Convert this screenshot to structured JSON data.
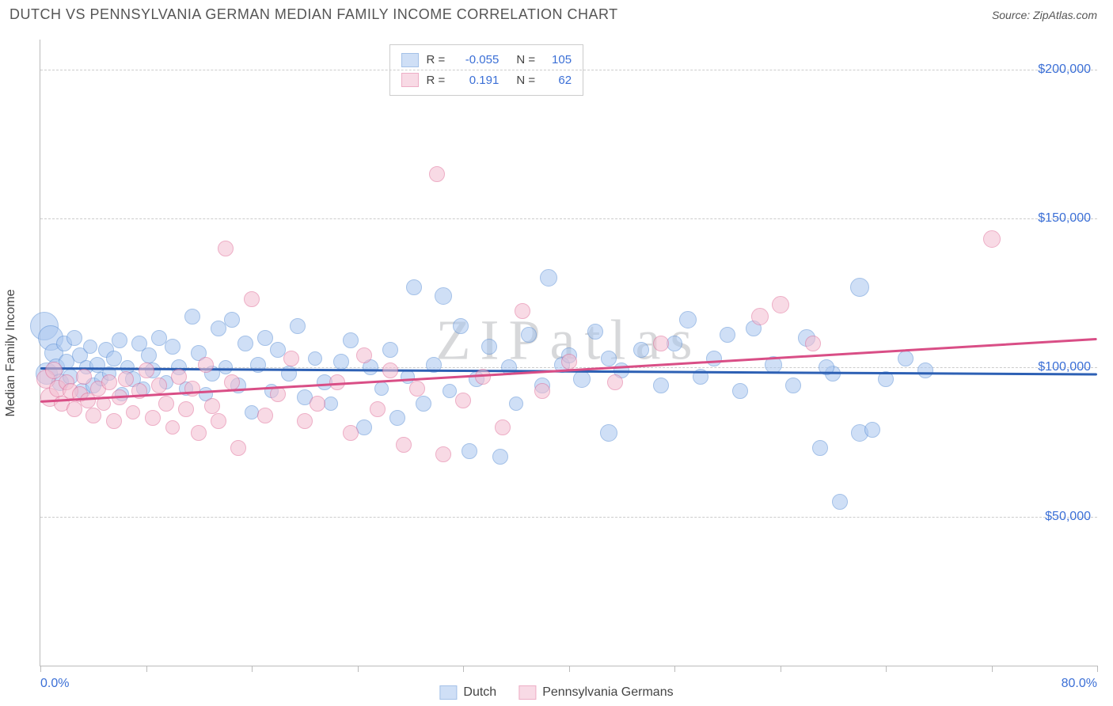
{
  "header": {
    "title": "DUTCH VS PENNSYLVANIA GERMAN MEDIAN FAMILY INCOME CORRELATION CHART",
    "source": "Source: ZipAtlas.com"
  },
  "watermark": "ZIPatlas",
  "chart": {
    "type": "scatter",
    "background_color": "#ffffff",
    "grid_color": "#cccccc",
    "grid_dash": "4,4",
    "axis_color": "#bbbbbb",
    "label_color": "#3b6fd6",
    "text_color": "#444444",
    "yaxis": {
      "title": "Median Family Income",
      "min": 0,
      "max": 210000
    },
    "y_gridlines": [
      {
        "v": 50000,
        "label": "$50,000"
      },
      {
        "v": 100000,
        "label": "$100,000"
      },
      {
        "v": 150000,
        "label": "$150,000"
      },
      {
        "v": 200000,
        "label": "$200,000"
      }
    ],
    "xaxis": {
      "min": 0,
      "max": 80
    },
    "x_ticks": [
      0,
      8,
      16,
      24,
      32,
      40,
      48,
      56,
      64,
      72,
      80
    ],
    "x_labels": [
      {
        "v": 0,
        "label": "0.0%"
      },
      {
        "v": 80,
        "label": "80.0%"
      }
    ],
    "series": [
      {
        "id": "dutch",
        "name": "Dutch",
        "fill": "#a9c6ef",
        "stroke": "#5a8fd6",
        "fill_opacity": 0.55,
        "trend": {
          "y_at_xmin": 100000,
          "y_at_xmax": 98000,
          "color": "#2d60b4",
          "width": 3
        },
        "stats": {
          "R": "-0.055",
          "N": "105"
        },
        "points": [
          {
            "x": 0.3,
            "y": 114000,
            "r": 18
          },
          {
            "x": 0.5,
            "y": 98000,
            "r": 14
          },
          {
            "x": 0.8,
            "y": 110000,
            "r": 16
          },
          {
            "x": 1.0,
            "y": 105000,
            "r": 12
          },
          {
            "x": 1.2,
            "y": 100000,
            "r": 11
          },
          {
            "x": 1.5,
            "y": 95000,
            "r": 11
          },
          {
            "x": 1.8,
            "y": 108000,
            "r": 10
          },
          {
            "x": 2.0,
            "y": 102000,
            "r": 10
          },
          {
            "x": 2.3,
            "y": 97000,
            "r": 10
          },
          {
            "x": 2.6,
            "y": 110000,
            "r": 10
          },
          {
            "x": 3.0,
            "y": 104000,
            "r": 10
          },
          {
            "x": 3.2,
            "y": 92000,
            "r": 10
          },
          {
            "x": 3.5,
            "y": 100000,
            "r": 9
          },
          {
            "x": 3.8,
            "y": 107000,
            "r": 9
          },
          {
            "x": 4.0,
            "y": 94000,
            "r": 10
          },
          {
            "x": 4.3,
            "y": 101000,
            "r": 10
          },
          {
            "x": 4.6,
            "y": 96000,
            "r": 9
          },
          {
            "x": 5.0,
            "y": 106000,
            "r": 10
          },
          {
            "x": 5.2,
            "y": 98000,
            "r": 9
          },
          {
            "x": 5.6,
            "y": 103000,
            "r": 10
          },
          {
            "x": 6.0,
            "y": 109000,
            "r": 10
          },
          {
            "x": 6.2,
            "y": 91000,
            "r": 9
          },
          {
            "x": 6.6,
            "y": 100000,
            "r": 9
          },
          {
            "x": 7.0,
            "y": 96000,
            "r": 10
          },
          {
            "x": 7.5,
            "y": 108000,
            "r": 10
          },
          {
            "x": 7.8,
            "y": 93000,
            "r": 9
          },
          {
            "x": 8.2,
            "y": 104000,
            "r": 10
          },
          {
            "x": 8.5,
            "y": 99000,
            "r": 10
          },
          {
            "x": 9.0,
            "y": 110000,
            "r": 10
          },
          {
            "x": 9.5,
            "y": 95000,
            "r": 9
          },
          {
            "x": 10.0,
            "y": 107000,
            "r": 10
          },
          {
            "x": 10.5,
            "y": 100000,
            "r": 10
          },
          {
            "x": 11.0,
            "y": 93000,
            "r": 9
          },
          {
            "x": 11.5,
            "y": 117000,
            "r": 10
          },
          {
            "x": 12.0,
            "y": 105000,
            "r": 10
          },
          {
            "x": 12.5,
            "y": 91000,
            "r": 9
          },
          {
            "x": 13.0,
            "y": 98000,
            "r": 10
          },
          {
            "x": 13.5,
            "y": 113000,
            "r": 10
          },
          {
            "x": 14.0,
            "y": 100000,
            "r": 9
          },
          {
            "x": 14.5,
            "y": 116000,
            "r": 10
          },
          {
            "x": 15.0,
            "y": 94000,
            "r": 10
          },
          {
            "x": 15.5,
            "y": 108000,
            "r": 10
          },
          {
            "x": 16.0,
            "y": 85000,
            "r": 9
          },
          {
            "x": 16.5,
            "y": 101000,
            "r": 10
          },
          {
            "x": 17.0,
            "y": 110000,
            "r": 10
          },
          {
            "x": 17.5,
            "y": 92000,
            "r": 9
          },
          {
            "x": 18.0,
            "y": 106000,
            "r": 10
          },
          {
            "x": 18.8,
            "y": 98000,
            "r": 10
          },
          {
            "x": 19.5,
            "y": 114000,
            "r": 10
          },
          {
            "x": 20.0,
            "y": 90000,
            "r": 10
          },
          {
            "x": 20.8,
            "y": 103000,
            "r": 9
          },
          {
            "x": 21.5,
            "y": 95000,
            "r": 10
          },
          {
            "x": 22.0,
            "y": 88000,
            "r": 9
          },
          {
            "x": 22.8,
            "y": 102000,
            "r": 10
          },
          {
            "x": 23.5,
            "y": 109000,
            "r": 10
          },
          {
            "x": 24.5,
            "y": 80000,
            "r": 10
          },
          {
            "x": 25.0,
            "y": 100000,
            "r": 10
          },
          {
            "x": 25.8,
            "y": 93000,
            "r": 9
          },
          {
            "x": 26.5,
            "y": 106000,
            "r": 10
          },
          {
            "x": 27.0,
            "y": 83000,
            "r": 10
          },
          {
            "x": 27.8,
            "y": 97000,
            "r": 9
          },
          {
            "x": 28.3,
            "y": 127000,
            "r": 10
          },
          {
            "x": 29.0,
            "y": 88000,
            "r": 10
          },
          {
            "x": 29.8,
            "y": 101000,
            "r": 10
          },
          {
            "x": 30.5,
            "y": 124000,
            "r": 11
          },
          {
            "x": 31.0,
            "y": 92000,
            "r": 9
          },
          {
            "x": 31.8,
            "y": 114000,
            "r": 10
          },
          {
            "x": 32.5,
            "y": 72000,
            "r": 10
          },
          {
            "x": 33.0,
            "y": 96000,
            "r": 10
          },
          {
            "x": 34.0,
            "y": 107000,
            "r": 10
          },
          {
            "x": 34.8,
            "y": 70000,
            "r": 10
          },
          {
            "x": 35.5,
            "y": 100000,
            "r": 10
          },
          {
            "x": 36.0,
            "y": 88000,
            "r": 9
          },
          {
            "x": 37.0,
            "y": 111000,
            "r": 10
          },
          {
            "x": 38.0,
            "y": 94000,
            "r": 10
          },
          {
            "x": 38.5,
            "y": 130000,
            "r": 11
          },
          {
            "x": 39.5,
            "y": 101000,
            "r": 10
          },
          {
            "x": 40.0,
            "y": 104000,
            "r": 10
          },
          {
            "x": 41.0,
            "y": 96000,
            "r": 11
          },
          {
            "x": 42.0,
            "y": 112000,
            "r": 10
          },
          {
            "x": 43.0,
            "y": 78000,
            "r": 11
          },
          {
            "x": 44.0,
            "y": 99000,
            "r": 10
          },
          {
            "x": 45.5,
            "y": 106000,
            "r": 10
          },
          {
            "x": 47.0,
            "y": 94000,
            "r": 10
          },
          {
            "x": 48.0,
            "y": 108000,
            "r": 10
          },
          {
            "x": 49.0,
            "y": 116000,
            "r": 11
          },
          {
            "x": 50.0,
            "y": 97000,
            "r": 10
          },
          {
            "x": 51.0,
            "y": 103000,
            "r": 10
          },
          {
            "x": 53.0,
            "y": 92000,
            "r": 10
          },
          {
            "x": 54.0,
            "y": 113000,
            "r": 10
          },
          {
            "x": 55.5,
            "y": 101000,
            "r": 11
          },
          {
            "x": 57.0,
            "y": 94000,
            "r": 10
          },
          {
            "x": 58.0,
            "y": 110000,
            "r": 11
          },
          {
            "x": 59.0,
            "y": 73000,
            "r": 10
          },
          {
            "x": 60.0,
            "y": 98000,
            "r": 10
          },
          {
            "x": 62.0,
            "y": 78000,
            "r": 11
          },
          {
            "x": 62.0,
            "y": 127000,
            "r": 12
          },
          {
            "x": 64.0,
            "y": 96000,
            "r": 10
          },
          {
            "x": 65.5,
            "y": 103000,
            "r": 10
          },
          {
            "x": 60.5,
            "y": 55000,
            "r": 10
          },
          {
            "x": 67.0,
            "y": 99000,
            "r": 10
          },
          {
            "x": 43.0,
            "y": 103000,
            "r": 10
          },
          {
            "x": 52.0,
            "y": 111000,
            "r": 10
          },
          {
            "x": 59.5,
            "y": 100000,
            "r": 10
          },
          {
            "x": 63.0,
            "y": 79000,
            "r": 10
          }
        ]
      },
      {
        "id": "penn",
        "name": "Pennsylvania Germans",
        "fill": "#f4bdd0",
        "stroke": "#e06d98",
        "fill_opacity": 0.55,
        "trend": {
          "y_at_xmin": 89000,
          "y_at_xmax": 110000,
          "color": "#d94e86",
          "width": 3
        },
        "stats": {
          "R": "0.191",
          "N": "62"
        },
        "points": [
          {
            "x": 0.4,
            "y": 96000,
            "r": 12
          },
          {
            "x": 0.7,
            "y": 90000,
            "r": 12
          },
          {
            "x": 1.0,
            "y": 99000,
            "r": 11
          },
          {
            "x": 1.3,
            "y": 93000,
            "r": 11
          },
          {
            "x": 1.6,
            "y": 88000,
            "r": 10
          },
          {
            "x": 2.0,
            "y": 95000,
            "r": 10
          },
          {
            "x": 2.3,
            "y": 92000,
            "r": 10
          },
          {
            "x": 2.6,
            "y": 86000,
            "r": 10
          },
          {
            "x": 3.0,
            "y": 91000,
            "r": 10
          },
          {
            "x": 3.3,
            "y": 97000,
            "r": 10
          },
          {
            "x": 3.6,
            "y": 89000,
            "r": 10
          },
          {
            "x": 4.0,
            "y": 84000,
            "r": 10
          },
          {
            "x": 4.4,
            "y": 93000,
            "r": 10
          },
          {
            "x": 4.8,
            "y": 88000,
            "r": 9
          },
          {
            "x": 5.2,
            "y": 95000,
            "r": 10
          },
          {
            "x": 5.6,
            "y": 82000,
            "r": 10
          },
          {
            "x": 6.0,
            "y": 90000,
            "r": 10
          },
          {
            "x": 6.5,
            "y": 96000,
            "r": 10
          },
          {
            "x": 7.0,
            "y": 85000,
            "r": 9
          },
          {
            "x": 7.5,
            "y": 92000,
            "r": 10
          },
          {
            "x": 8.0,
            "y": 99000,
            "r": 10
          },
          {
            "x": 8.5,
            "y": 83000,
            "r": 10
          },
          {
            "x": 9.0,
            "y": 94000,
            "r": 10
          },
          {
            "x": 9.5,
            "y": 88000,
            "r": 10
          },
          {
            "x": 10.0,
            "y": 80000,
            "r": 9
          },
          {
            "x": 10.5,
            "y": 97000,
            "r": 10
          },
          {
            "x": 11.0,
            "y": 86000,
            "r": 10
          },
          {
            "x": 11.5,
            "y": 93000,
            "r": 10
          },
          {
            "x": 12.0,
            "y": 78000,
            "r": 10
          },
          {
            "x": 12.5,
            "y": 101000,
            "r": 10
          },
          {
            "x": 13.0,
            "y": 87000,
            "r": 10
          },
          {
            "x": 13.5,
            "y": 82000,
            "r": 10
          },
          {
            "x": 14.0,
            "y": 140000,
            "r": 10
          },
          {
            "x": 14.5,
            "y": 95000,
            "r": 10
          },
          {
            "x": 15.0,
            "y": 73000,
            "r": 10
          },
          {
            "x": 16.0,
            "y": 123000,
            "r": 10
          },
          {
            "x": 17.0,
            "y": 84000,
            "r": 10
          },
          {
            "x": 18.0,
            "y": 91000,
            "r": 10
          },
          {
            "x": 19.0,
            "y": 103000,
            "r": 10
          },
          {
            "x": 20.0,
            "y": 82000,
            "r": 10
          },
          {
            "x": 21.0,
            "y": 88000,
            "r": 10
          },
          {
            "x": 22.5,
            "y": 95000,
            "r": 10
          },
          {
            "x": 23.5,
            "y": 78000,
            "r": 10
          },
          {
            "x": 24.5,
            "y": 104000,
            "r": 10
          },
          {
            "x": 25.5,
            "y": 86000,
            "r": 10
          },
          {
            "x": 26.5,
            "y": 99000,
            "r": 10
          },
          {
            "x": 27.5,
            "y": 74000,
            "r": 10
          },
          {
            "x": 28.5,
            "y": 93000,
            "r": 10
          },
          {
            "x": 30.0,
            "y": 165000,
            "r": 10
          },
          {
            "x": 30.5,
            "y": 71000,
            "r": 10
          },
          {
            "x": 32.0,
            "y": 89000,
            "r": 10
          },
          {
            "x": 33.5,
            "y": 97000,
            "r": 10
          },
          {
            "x": 35.0,
            "y": 80000,
            "r": 10
          },
          {
            "x": 36.5,
            "y": 119000,
            "r": 10
          },
          {
            "x": 38.0,
            "y": 92000,
            "r": 10
          },
          {
            "x": 40.0,
            "y": 102000,
            "r": 10
          },
          {
            "x": 43.5,
            "y": 95000,
            "r": 10
          },
          {
            "x": 47.0,
            "y": 108000,
            "r": 10
          },
          {
            "x": 54.5,
            "y": 117000,
            "r": 11
          },
          {
            "x": 56.0,
            "y": 121000,
            "r": 11
          },
          {
            "x": 58.5,
            "y": 108000,
            "r": 10
          },
          {
            "x": 72.0,
            "y": 143000,
            "r": 11
          }
        ]
      }
    ]
  },
  "legend_box": {
    "r_label": "R =",
    "n_label": "N ="
  }
}
